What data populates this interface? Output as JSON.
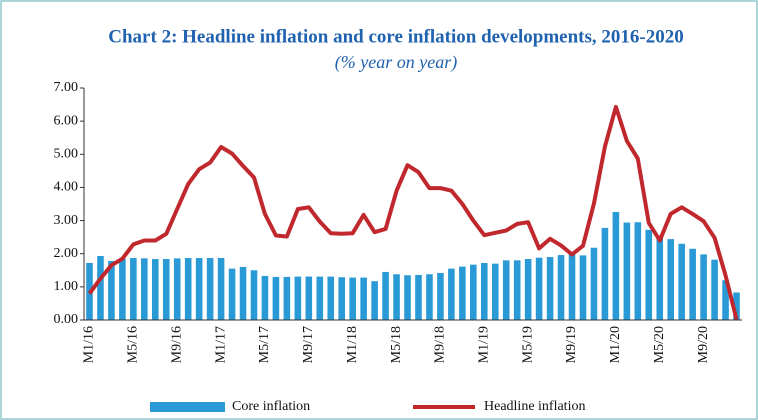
{
  "chart_data": {
    "type": "bar",
    "title": "Chart 2: Headline inflation and core inflation developments, 2016-2020",
    "subtitle": "(% year on year)",
    "categories": [
      "M1/16",
      null,
      null,
      null,
      "M5/16",
      null,
      null,
      null,
      "M9/16",
      null,
      null,
      null,
      "M1/17",
      null,
      null,
      null,
      "M5/17",
      null,
      null,
      null,
      "M9/17",
      null,
      null,
      null,
      "M1/18",
      null,
      null,
      null,
      "M5/18",
      null,
      null,
      null,
      "M9/18",
      null,
      null,
      null,
      "M1/19",
      null,
      null,
      null,
      "M5/19",
      null,
      null,
      null,
      "M9/19",
      null,
      null,
      null,
      "M1/20",
      null,
      null,
      null,
      "M5/20",
      null,
      null,
      null,
      "M9/20",
      null,
      null,
      null
    ],
    "series": [
      {
        "name": "Core inflation",
        "type": "bar",
        "color": "#2a9ad6",
        "values": [
          1.72,
          1.93,
          1.78,
          1.85,
          1.87,
          1.86,
          1.84,
          1.84,
          1.86,
          1.87,
          1.87,
          1.87,
          1.87,
          1.55,
          1.6,
          1.5,
          1.33,
          1.3,
          1.3,
          1.31,
          1.31,
          1.31,
          1.31,
          1.29,
          1.28,
          1.28,
          1.17,
          1.45,
          1.38,
          1.35,
          1.36,
          1.38,
          1.42,
          1.55,
          1.61,
          1.67,
          1.72,
          1.7,
          1.8,
          1.8,
          1.84,
          1.88,
          1.9,
          1.96,
          2.05,
          1.95,
          2.18,
          2.78,
          3.26,
          2.94,
          2.95,
          2.72,
          2.55,
          2.44,
          2.3,
          2.15,
          1.98,
          1.82,
          1.2,
          0.83
        ]
      },
      {
        "name": "Headline inflation",
        "type": "line",
        "color": "#c0282d",
        "values": [
          0.8,
          1.25,
          1.65,
          1.85,
          2.28,
          2.4,
          2.4,
          2.6,
          3.35,
          4.1,
          4.55,
          4.75,
          5.22,
          5.02,
          4.65,
          4.3,
          3.2,
          2.55,
          2.52,
          3.35,
          3.4,
          2.97,
          2.62,
          2.6,
          2.62,
          3.17,
          2.65,
          2.75,
          3.9,
          4.67,
          4.46,
          3.98,
          3.98,
          3.9,
          3.5,
          3.0,
          2.56,
          2.63,
          2.7,
          2.9,
          2.95,
          2.16,
          2.45,
          2.25,
          1.98,
          2.24,
          3.52,
          5.23,
          6.43,
          5.4,
          4.87,
          2.93,
          2.4,
          3.2,
          3.4,
          3.2,
          2.98,
          2.48,
          1.35,
          0.02
        ]
      }
    ],
    "ylim": [
      0,
      7
    ],
    "yticks": [
      {
        "value": 0,
        "label": "0.00"
      },
      {
        "value": 1,
        "label": "1.00"
      },
      {
        "value": 2,
        "label": "2.00"
      },
      {
        "value": 3,
        "label": "3.00"
      },
      {
        "value": 4,
        "label": "4.00"
      },
      {
        "value": 5,
        "label": "5.00"
      },
      {
        "value": 6,
        "label": "6.00"
      },
      {
        "value": 7,
        "label": "7.00"
      }
    ],
    "legend": "bottom"
  }
}
